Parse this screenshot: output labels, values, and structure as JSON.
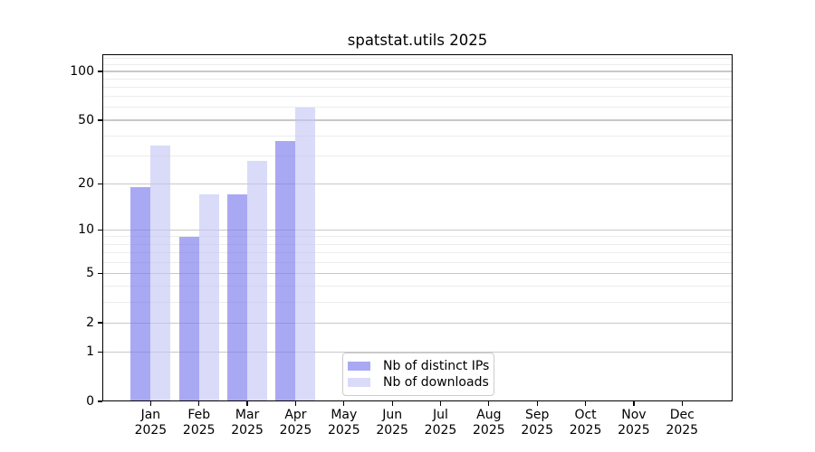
{
  "chart_data": {
    "type": "bar",
    "title": "spatstat.utils 2025",
    "year": "2025",
    "categories": [
      "Jan",
      "Feb",
      "Mar",
      "Apr",
      "May",
      "Jun",
      "Jul",
      "Aug",
      "Sep",
      "Oct",
      "Nov",
      "Dec"
    ],
    "series": [
      {
        "name": "Nb of distinct IPs",
        "color": "rgba(123,123,237,0.65)",
        "values": [
          19,
          9,
          17,
          37,
          0,
          0,
          0,
          0,
          0,
          0,
          0,
          0
        ]
      },
      {
        "name": "Nb of downloads",
        "color": "rgba(196,196,246,0.62)",
        "values": [
          35,
          17,
          28,
          60,
          0,
          0,
          0,
          0,
          0,
          0,
          0,
          0
        ]
      }
    ],
    "xlabel": "",
    "ylabel": "",
    "y_scale": "log10(value+1)",
    "y_major_ticks": [
      100,
      50,
      20,
      10,
      5,
      2,
      1,
      0
    ],
    "y_minor_ticks": [
      3,
      4,
      6,
      7,
      8,
      9,
      30,
      40,
      60,
      70,
      80,
      90,
      110,
      120
    ],
    "ylim": [
      0,
      127.4
    ],
    "grid": "on",
    "legend_position": "lower center"
  },
  "colors": {
    "major_grid": "#c8c8c8",
    "minor_grid": "#ececec",
    "axis": "#000000",
    "background": "#ffffff"
  }
}
